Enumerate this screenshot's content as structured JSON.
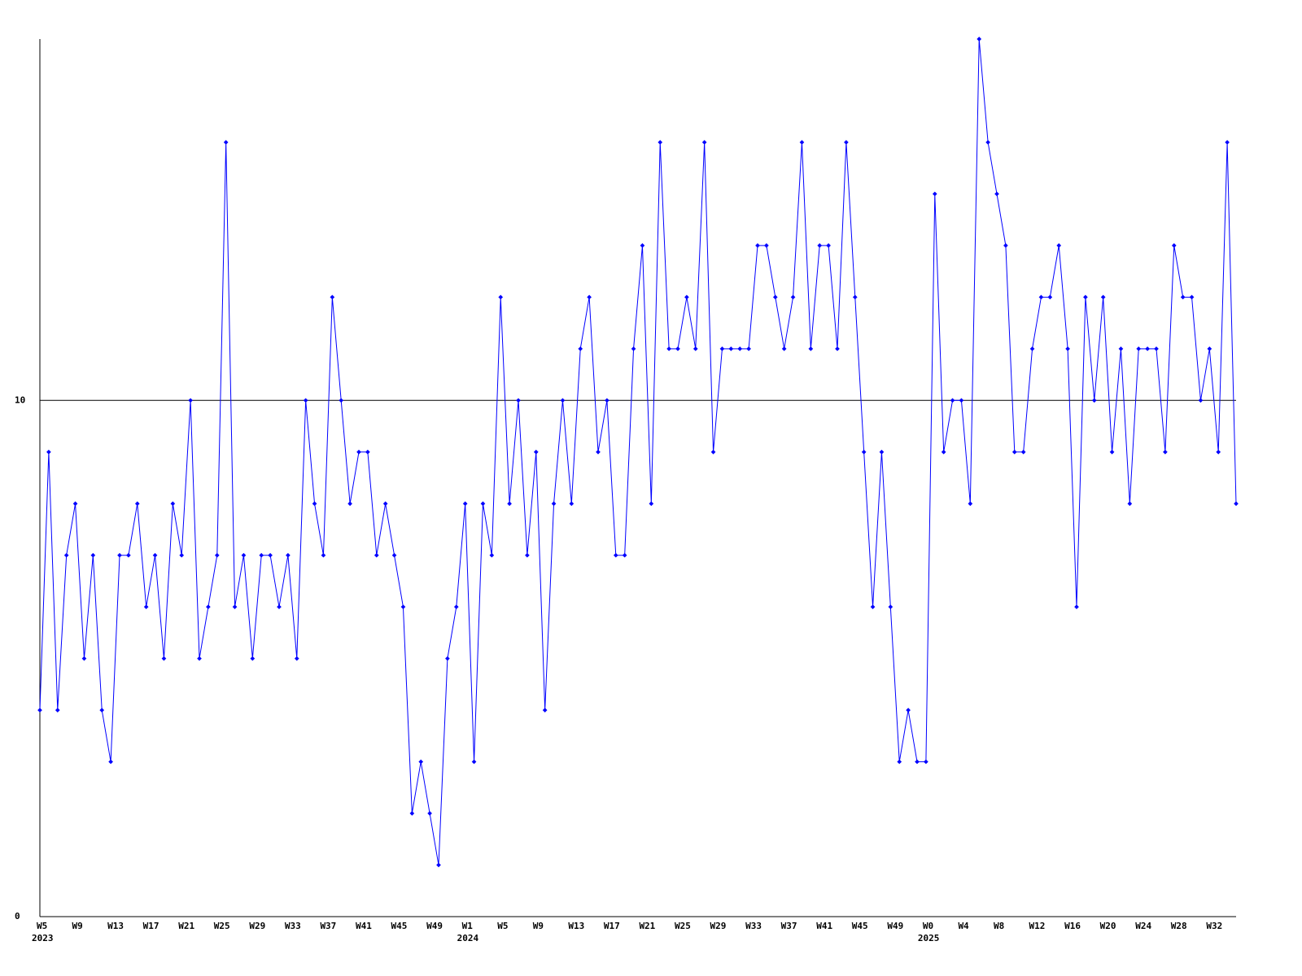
{
  "chart_data": {
    "type": "line",
    "categories": [
      "W5",
      null,
      null,
      null,
      "W9",
      null,
      null,
      null,
      "W13",
      null,
      null,
      null,
      "W17",
      null,
      null,
      null,
      "W21",
      null,
      null,
      null,
      "W25",
      null,
      null,
      null,
      "W29",
      null,
      null,
      null,
      "W33",
      null,
      null,
      null,
      "W37",
      null,
      null,
      null,
      "W41",
      null,
      null,
      null,
      "W45",
      null,
      null,
      null,
      "W49",
      null,
      null,
      null,
      "W1",
      null,
      null,
      null,
      "W5",
      null,
      null,
      null,
      "W9",
      null,
      null,
      null,
      "W13",
      null,
      null,
      null,
      "W17",
      null,
      null,
      null,
      "W21",
      null,
      null,
      null,
      "W25",
      null,
      null,
      null,
      "W29",
      null,
      null,
      null,
      "W33",
      null,
      null,
      null,
      "W37",
      null,
      null,
      null,
      "W41",
      null,
      null,
      null,
      "W45",
      null,
      null,
      null,
      "W49",
      null,
      null,
      null,
      "W0",
      null,
      null,
      null,
      "W4",
      null,
      null,
      null,
      "W8",
      null,
      null,
      null,
      "W12",
      null,
      null,
      null,
      "W16",
      null,
      null,
      null,
      "W20",
      null,
      null,
      null,
      "W24",
      null,
      null,
      null,
      "W28",
      null,
      null,
      null,
      "W32",
      null,
      null,
      null
    ],
    "years": [
      "2023",
      "2024",
      "2025"
    ],
    "series": [
      {
        "color": "#0000ff",
        "values": [
          4,
          9,
          4,
          7,
          8,
          5,
          7,
          4,
          3,
          7,
          7,
          8,
          6,
          7,
          5,
          8,
          7,
          10,
          5,
          6,
          7,
          15,
          6,
          7,
          5,
          7,
          7,
          6,
          7,
          5,
          10,
          8,
          7,
          12,
          10,
          8,
          9,
          9,
          7,
          8,
          7,
          6,
          2,
          3,
          2,
          1,
          5,
          6,
          8,
          3,
          8,
          7,
          12,
          8,
          10,
          7,
          9,
          4,
          8,
          10,
          8,
          11,
          12,
          9,
          10,
          7,
          7,
          11,
          13,
          8,
          15,
          11,
          11,
          12,
          11,
          15,
          9,
          11,
          11,
          11,
          11,
          13,
          13,
          12,
          11,
          12,
          15,
          11,
          13,
          13,
          11,
          15,
          12,
          9,
          6,
          9,
          6,
          3,
          4,
          3,
          3,
          14,
          9,
          10,
          10,
          8,
          17,
          15,
          14,
          13,
          9,
          9,
          11,
          12,
          12,
          13,
          11,
          6,
          12,
          10,
          12,
          9,
          11,
          8,
          11,
          11,
          11,
          9,
          13,
          12,
          12,
          10,
          11,
          9,
          15,
          8
        ]
      }
    ],
    "ylim": [
      0,
      17
    ],
    "yticks": [
      0,
      10
    ],
    "grid": true
  }
}
